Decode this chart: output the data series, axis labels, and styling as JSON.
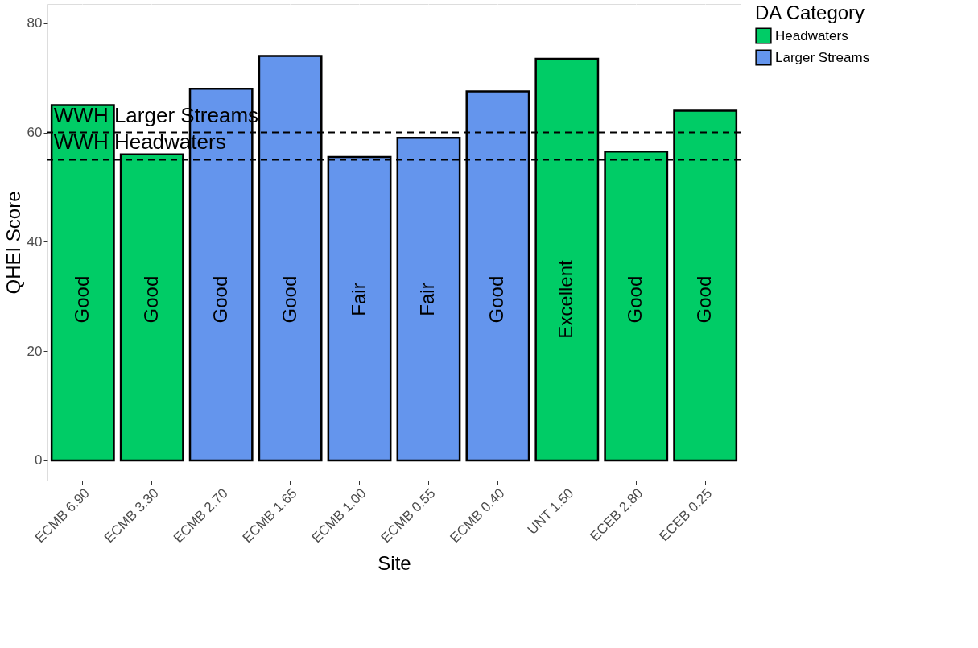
{
  "chart_data": {
    "type": "bar",
    "xlabel": "Site",
    "ylabel": "QHEI Score",
    "legend_title": "DA Category",
    "legend": "right",
    "grid": true,
    "categories": [
      "ECMB 6.90",
      "ECMB 3.30",
      "ECMB 2.70",
      "ECMB 1.65",
      "ECMB 1.00",
      "ECMB 0.55",
      "ECMB 0.40",
      "UNT 1.50",
      "ECEB 2.80",
      "ECEB 0.25"
    ],
    "series": [
      {
        "name": "Headwaters",
        "color": "#00cc66",
        "values": [
          65,
          56,
          null,
          null,
          null,
          null,
          null,
          73.5,
          56.5,
          64
        ]
      },
      {
        "name": "Larger Streams",
        "color": "#6495ed",
        "values": [
          null,
          null,
          68,
          74,
          55.5,
          59,
          67.5,
          null,
          null,
          null
        ]
      }
    ],
    "value_labels": [
      "Good",
      "Good",
      "Good",
      "Good",
      "Fair",
      "Fair",
      "Good",
      "Excellent",
      "Good",
      "Good"
    ],
    "ylim": [
      -3.7,
      83.5
    ],
    "yticks": [
      0,
      20,
      40,
      60,
      80
    ],
    "ref_lines": [
      {
        "axis": "y",
        "value": 60,
        "label": "WWH Larger Streams",
        "line_style": "dashed"
      },
      {
        "axis": "y",
        "value": 55,
        "label": "WWH Headwaters",
        "line_style": "dashed"
      }
    ]
  }
}
